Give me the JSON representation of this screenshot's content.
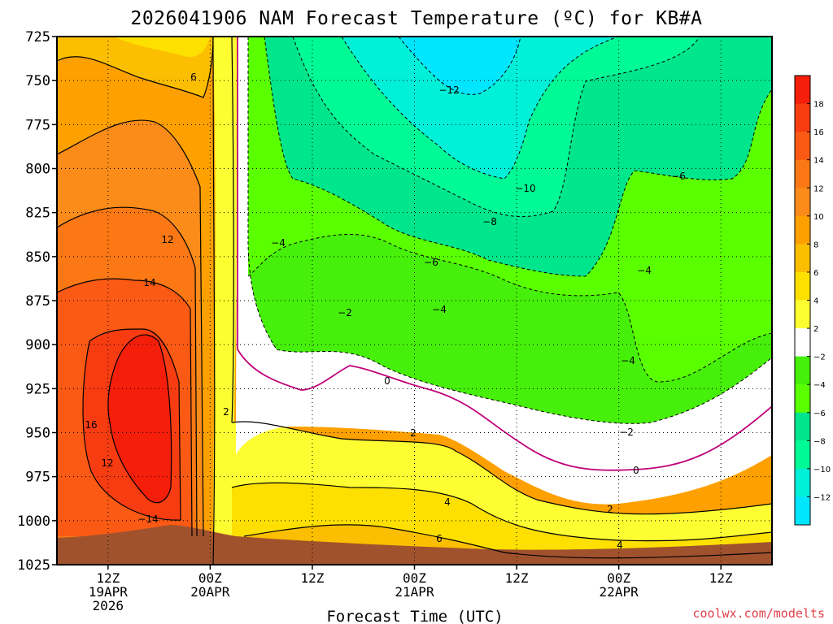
{
  "chart_data": {
    "type": "heatmap",
    "title": "2026041906 NAM Forecast Temperature (ºC) for KB#A",
    "xlabel": "Forecast Time (UTC)",
    "ylabel": "",
    "credit": "coolwx.com/modelts",
    "y_axis": {
      "unit": "hPa",
      "range": [
        725,
        1025
      ],
      "reversed": true,
      "ticks": [
        "725",
        "750",
        "775",
        "800",
        "825",
        "850",
        "875",
        "900",
        "925",
        "950",
        "975",
        "1000",
        "1025"
      ]
    },
    "x_axis": {
      "unit": "hours since 2026-04-19 06Z",
      "range": [
        0,
        84
      ],
      "ticks": [
        {
          "hour": 6,
          "lines": [
            "12Z",
            "19APR",
            "2026"
          ]
        },
        {
          "hour": 18,
          "lines": [
            "00Z",
            "20APR"
          ]
        },
        {
          "hour": 30,
          "lines": [
            "12Z"
          ]
        },
        {
          "hour": 42,
          "lines": [
            "00Z",
            "21APR"
          ]
        },
        {
          "hour": 54,
          "lines": [
            "12Z"
          ]
        },
        {
          "hour": 66,
          "lines": [
            "00Z",
            "22APR"
          ]
        },
        {
          "hour": 78,
          "lines": [
            "12Z"
          ]
        }
      ]
    },
    "grid": true,
    "colorbar": {
      "position": "right",
      "ticks": [
        "18",
        "16",
        "14",
        "12",
        "10",
        "8",
        "6",
        "4",
        "2",
        "−2",
        "−4",
        "−6",
        "−8",
        "−10",
        "−12"
      ],
      "levels": [
        {
          "from": 18,
          "to": 20,
          "color": "#f41e0a"
        },
        {
          "from": 16,
          "to": 18,
          "color": "#f83c12"
        },
        {
          "from": 14,
          "to": 16,
          "color": "#fa5a14"
        },
        {
          "from": 12,
          "to": 14,
          "color": "#fb7814"
        },
        {
          "from": 10,
          "to": 12,
          "color": "#fb8c1a"
        },
        {
          "from": 8,
          "to": 10,
          "color": "#fda000"
        },
        {
          "from": 6,
          "to": 8,
          "color": "#fcbe00"
        },
        {
          "from": 4,
          "to": 6,
          "color": "#fde000"
        },
        {
          "from": 2,
          "to": 4,
          "color": "#fdfd32"
        },
        {
          "from": -2,
          "to": 2,
          "color": "#ffffff"
        },
        {
          "from": -4,
          "to": -2,
          "color": "#46f00a"
        },
        {
          "from": -6,
          "to": -4,
          "color": "#5aff00"
        },
        {
          "from": -8,
          "to": -6,
          "color": "#00e68c"
        },
        {
          "from": -10,
          "to": -8,
          "color": "#00fa96"
        },
        {
          "from": -12,
          "to": -10,
          "color": "#00f0d8"
        },
        {
          "from": -14,
          "to": -12,
          "color": "#00e6ff"
        }
      ]
    },
    "ground_color": "#a0522d",
    "freezing_line_color": "#c0007a",
    "series": [
      {
        "name": "Temperature",
        "unit": "ºC",
        "x_hours": [
          0,
          6,
          12,
          16,
          17,
          18,
          20,
          24,
          30,
          36,
          42,
          48,
          54,
          60,
          66,
          72,
          78,
          84
        ],
        "profiles": {
          "725": [
            6,
            6.5,
            6,
            4.5,
            2,
            0.5,
            -3,
            -6,
            -8,
            -10,
            -12,
            -13,
            -12,
            -8,
            -6,
            -5,
            -4,
            -3
          ],
          "800": [
            10,
            11,
            10,
            8,
            4,
            1.5,
            -2.5,
            -4,
            -6,
            -7,
            -8,
            -10,
            -11,
            -9,
            -7,
            -6,
            -5,
            -4
          ],
          "850": [
            13,
            14,
            13,
            10,
            6,
            2.5,
            0.5,
            -4,
            -4,
            -5,
            -6,
            -7,
            -8,
            -6,
            -5,
            -4,
            -4,
            -3
          ],
          "900": [
            14,
            16,
            15,
            11,
            7,
            3,
            1,
            0,
            0,
            -1,
            -2,
            -3,
            -4,
            -4,
            -4,
            -3,
            -2,
            -1
          ],
          "950": [
            15,
            17,
            16,
            12,
            8,
            3,
            2,
            2,
            2.5,
            2.5,
            1,
            0.5,
            0,
            -1,
            -2,
            -1,
            0,
            1
          ],
          "975": [
            12,
            17,
            18,
            12,
            8,
            3,
            2.5,
            3,
            3,
            3,
            3,
            2,
            1,
            0.5,
            0,
            0.5,
            1,
            2
          ],
          "1000": [
            12,
            13,
            14,
            12,
            8,
            4,
            4,
            4.5,
            5,
            5.5,
            5,
            4,
            2,
            2,
            2,
            2,
            2.5,
            3
          ]
        }
      }
    ],
    "contour_labels": [
      "6",
      "12",
      "14",
      "16",
      "12",
      "−14",
      "2",
      "−4",
      "−2",
      "0",
      "2",
      "4",
      "6",
      "−12",
      "−10",
      "−8",
      "−6",
      "−4",
      "−6",
      "−4",
      "−4",
      "−2",
      "0",
      "2",
      "4"
    ]
  }
}
